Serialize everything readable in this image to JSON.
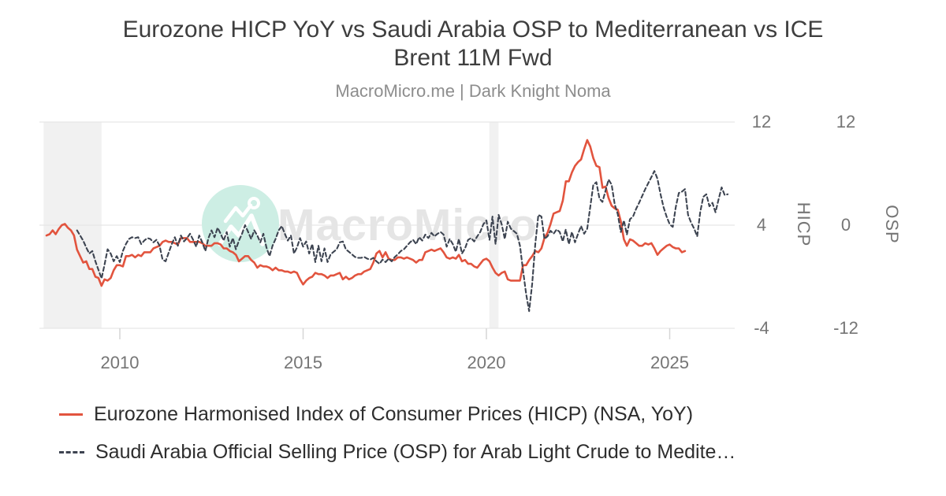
{
  "title": "Eurozone HICP YoY vs Saudi Arabia OSP to Mediterranean vs ICE Brent 11M Fwd",
  "subtitle": "MacroMicro.me | Dark Knight Noma",
  "watermark": {
    "text": "MacroMicro"
  },
  "colors": {
    "hicp_line": "#e2543e",
    "osp_line": "#3d4451",
    "gridline": "#e2e2e2",
    "tick_mark": "#d6d6d6",
    "recession_band": "#f1f1f1",
    "watermark_circle": "#cdeee4",
    "watermark_text": "#e5e5e5"
  },
  "legend": [
    {
      "label": "Eurozone Harmonised Index of Consumer Prices (HICP) (NSA, YoY)",
      "color": "#e2543e",
      "style": "solid"
    },
    {
      "label": "Saudi Arabia Official Selling Price (OSP) for Arab Light Crude to Medite…",
      "color": "#3d4451",
      "style": "dashed"
    }
  ],
  "chart_data": {
    "type": "line",
    "title": "Eurozone HICP YoY vs Saudi Arabia OSP to Mediterranean vs ICE Brent 11M Fwd",
    "grid": "horizontal",
    "legend_position": "bottom-left",
    "x_axis": {
      "ticks": [
        2010,
        2015,
        2020,
        2025
      ],
      "range": [
        2007.9,
        2026.7
      ]
    },
    "y_axes": [
      {
        "title": "HICP",
        "side": "right",
        "ticks": [
          12,
          4,
          -4
        ],
        "range": [
          -4,
          12
        ]
      },
      {
        "title": "OSP",
        "side": "right",
        "ticks": [
          12,
          0,
          -12
        ],
        "range": [
          -12,
          12
        ]
      }
    ],
    "recession_bands": [
      [
        2007.92,
        2009.5
      ],
      [
        2020.08,
        2020.33
      ]
    ],
    "series": [
      {
        "name": "Eurozone Harmonised Index of Consumer Prices (HICP) (NSA, YoY)",
        "axis": "HICP",
        "color": "#e2543e",
        "style": "solid",
        "frequency": "monthly",
        "start_year": 2008,
        "start_month": 1,
        "values": [
          3.2,
          3.3,
          3.6,
          3.3,
          3.7,
          4.0,
          4.1,
          3.8,
          3.6,
          3.2,
          2.1,
          1.6,
          1.1,
          1.2,
          0.6,
          0.6,
          0.0,
          -0.1,
          -0.7,
          -0.2,
          -0.3,
          -0.1,
          0.5,
          0.9,
          0.9,
          0.8,
          1.6,
          1.6,
          1.7,
          1.5,
          1.7,
          1.6,
          1.9,
          1.9,
          1.9,
          2.2,
          2.3,
          2.4,
          2.7,
          2.8,
          2.7,
          2.7,
          2.6,
          2.5,
          3.0,
          3.0,
          3.0,
          2.7,
          2.7,
          2.7,
          2.7,
          2.6,
          2.4,
          2.4,
          2.4,
          2.6,
          2.6,
          2.5,
          2.2,
          2.2,
          2.0,
          1.9,
          1.7,
          1.2,
          1.4,
          1.6,
          1.6,
          1.3,
          1.1,
          0.7,
          0.9,
          0.8,
          0.8,
          0.7,
          0.5,
          0.7,
          0.5,
          0.5,
          0.4,
          0.4,
          0.3,
          0.4,
          0.3,
          -0.2,
          -0.6,
          -0.3,
          -0.1,
          0.0,
          0.3,
          0.2,
          0.2,
          0.1,
          -0.1,
          0.1,
          0.1,
          0.2,
          0.3,
          -0.2,
          0.0,
          -0.2,
          -0.1,
          0.1,
          0.2,
          0.2,
          0.4,
          0.5,
          0.6,
          1.1,
          1.8,
          2.0,
          1.5,
          1.9,
          1.4,
          1.3,
          1.3,
          1.5,
          1.5,
          1.4,
          1.5,
          1.4,
          1.3,
          1.1,
          1.3,
          1.3,
          1.9,
          2.0,
          2.1,
          2.0,
          2.1,
          2.2,
          1.9,
          1.5,
          1.4,
          1.5,
          1.4,
          1.7,
          1.2,
          1.3,
          1.0,
          1.0,
          0.8,
          0.7,
          1.0,
          1.3,
          1.4,
          1.2,
          0.7,
          0.3,
          0.1,
          0.3,
          0.4,
          -0.2,
          -0.3,
          -0.3,
          -0.3,
          -0.3,
          0.9,
          0.9,
          1.3,
          1.6,
          2.0,
          1.9,
          2.2,
          3.0,
          3.4,
          4.1,
          4.9,
          5.0,
          5.1,
          5.9,
          7.4,
          7.4,
          8.1,
          8.6,
          8.9,
          9.1,
          9.9,
          10.6,
          10.1,
          9.2,
          8.6,
          8.5,
          6.9,
          7.0,
          6.1,
          5.5,
          5.3,
          5.2,
          4.3,
          2.9,
          2.4,
          2.9,
          2.8,
          2.6,
          2.4,
          2.4,
          2.6,
          2.5,
          2.6,
          2.2,
          1.7,
          2.0,
          2.2,
          2.4,
          2.5,
          2.3,
          2.2,
          2.2,
          1.9,
          2.0
        ]
      },
      {
        "name": "Saudi Arabia Official Selling Price (OSP) for Arab Light Crude to Medite…",
        "axis": "OSP",
        "color": "#3d4451",
        "style": "dashed",
        "frequency": "monthly",
        "start_year": 2008,
        "start_month": 11,
        "values": [
          -0.6,
          -1.2,
          -1.8,
          -2.6,
          -3.3,
          -3.0,
          -4.2,
          -5.2,
          -6.2,
          -4.6,
          -2.8,
          -3.3,
          -4.2,
          -3.6,
          -4.3,
          -3.0,
          -2.2,
          -1.6,
          -1.4,
          -1.5,
          -1.4,
          -2.2,
          -1.8,
          -1.5,
          -1.6,
          -2.0,
          -1.7,
          -2.4,
          -4.0,
          -4.2,
          -3.2,
          -2.2,
          -1.4,
          -2.4,
          -1.2,
          -1.9,
          -1.5,
          -1.0,
          -1.7,
          -2.5,
          -1.2,
          -2.0,
          -3.0,
          -1.5,
          -0.6,
          -1.4,
          -0.3,
          -1.0,
          -1.8,
          -0.8,
          -2.5,
          -1.5,
          -2.8,
          -1.8,
          -1.0,
          0.0,
          -0.8,
          -1.6,
          -0.6,
          -1.2,
          -2.0,
          -1.0,
          -2.6,
          -3.6,
          -2.4,
          -1.6,
          -0.6,
          -0.1,
          -1.0,
          -1.8,
          -1.2,
          -3.3,
          -2.6,
          -1.5,
          -2.5,
          -1.9,
          -3.3,
          -2.2,
          -4.3,
          -2.4,
          -4.2,
          -2.7,
          -4.3,
          -3.4,
          -3.1,
          -2.8,
          -2.0,
          -1.9,
          -2.8,
          -3.1,
          -3.4,
          -3.7,
          -3.8,
          -3.8,
          -3.7,
          -3.9,
          -4.0,
          -3.8,
          -4.2,
          -4.5,
          -4.0,
          -4.3,
          -3.9,
          -4.2,
          -3.7,
          -3.4,
          -3.0,
          -2.8,
          -2.4,
          -2.0,
          -1.7,
          -2.2,
          -1.4,
          -1.8,
          -1.1,
          -1.5,
          -0.9,
          -1.3,
          -1.0,
          -0.8,
          -1.1,
          -2.5,
          -1.6,
          -2.2,
          -3.1,
          -1.6,
          -3.3,
          -2.7,
          -1.7,
          -1.5,
          -1.9,
          -1.3,
          -0.8,
          0.1,
          0.55,
          -1.7,
          1.0,
          -2.2,
          1.2,
          0.1,
          -1.6,
          0.4,
          -0.4,
          -0.7,
          -1.0,
          -2.4,
          -5.3,
          -8.0,
          -10.0,
          -6.8,
          -2.2,
          1.2,
          1.0,
          -1.6,
          -1.3,
          -0.65,
          -1.0,
          -0.5,
          -0.8,
          -1.9,
          -0.5,
          -2.2,
          -0.8,
          -2.0,
          -1.0,
          -0.1,
          -1.0,
          -0.4,
          2.1,
          4.7,
          5.0,
          3.1,
          2.7,
          4.0,
          5.3,
          4.7,
          2.4,
          1.3,
          -0.8,
          0.55,
          -1.1,
          0.7,
          1.0,
          1.9,
          2.6,
          3.4,
          4.2,
          4.9,
          5.6,
          6.3,
          5.4,
          3.6,
          2.1,
          1.0,
          0.1,
          -0.2,
          2.1,
          3.75,
          3.9,
          4.2,
          1.2,
          0.3,
          -0.4,
          -1.3,
          1.5,
          3.3,
          3.6,
          2.2,
          2.6,
          1.5,
          3.0,
          4.4,
          3.5,
          3.6
        ]
      }
    ]
  }
}
